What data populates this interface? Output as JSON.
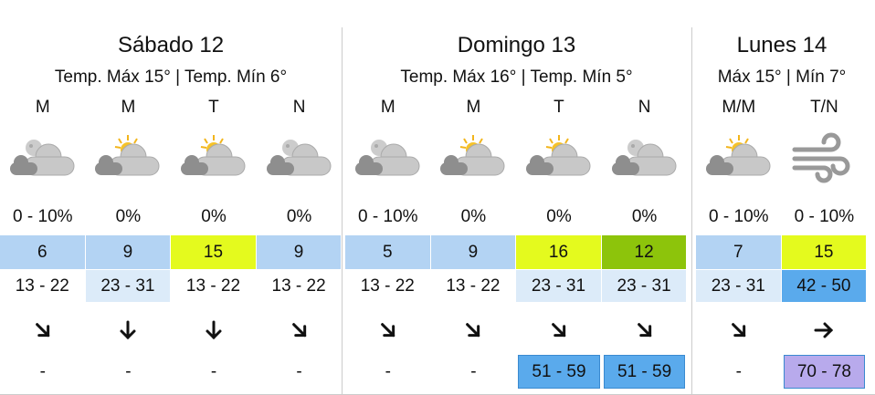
{
  "days": [
    {
      "title": "Sábado 12",
      "subtitle": "Temp. Máx 15° | Temp. Mín 6°",
      "periods": [
        {
          "label": "M",
          "precip": "0 - 10%",
          "temp": 6,
          "wind": "13 - 22",
          "gust": "-"
        },
        {
          "label": "M",
          "precip": "0%",
          "temp": 9,
          "wind": "23 - 31",
          "gust": "-"
        },
        {
          "label": "T",
          "precip": "0%",
          "temp": 15,
          "wind": "13 - 22",
          "gust": "-"
        },
        {
          "label": "N",
          "precip": "0%",
          "temp": 9,
          "wind": "13 - 22",
          "gust": "-"
        }
      ]
    },
    {
      "title": "Domingo 13",
      "subtitle": "Temp. Máx 16° | Temp. Mín 5°",
      "periods": [
        {
          "label": "M",
          "precip": "0 - 10%",
          "temp": 5,
          "wind": "13 - 22",
          "gust": "-"
        },
        {
          "label": "M",
          "precip": "0%",
          "temp": 9,
          "wind": "13 - 22",
          "gust": "-"
        },
        {
          "label": "T",
          "precip": "0%",
          "temp": 16,
          "wind": "23 - 31",
          "gust": "51 - 59"
        },
        {
          "label": "N",
          "precip": "0%",
          "temp": 12,
          "wind": "23 - 31",
          "gust": "51 - 59"
        }
      ]
    },
    {
      "title": "Lunes 14",
      "subtitle": "Máx 15° | Mín 7°",
      "periods": [
        {
          "label": "M/M",
          "precip": "0 - 10%",
          "temp": 7,
          "wind": "23 - 31",
          "gust": "-"
        },
        {
          "label": "T/N",
          "precip": "0 - 10%",
          "temp": 15,
          "wind": "42 - 50",
          "gust": "70 - 78"
        }
      ]
    }
  ]
}
